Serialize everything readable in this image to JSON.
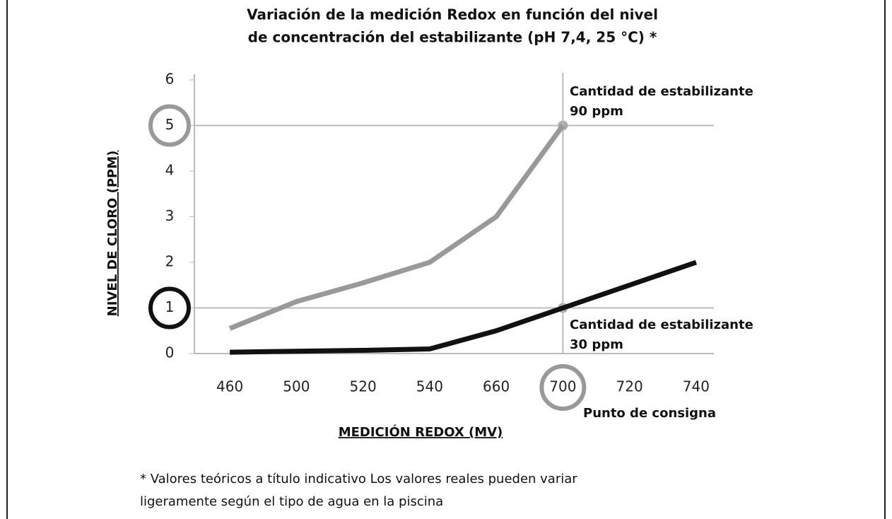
{
  "chart_data": {
    "type": "line",
    "title": [
      "Variación de la medición Redox en función del nivel",
      "de concentración del estabilizante (pH 7,4, 25 °C) *"
    ],
    "x_label": "MEDICIÓN REDOX (MV)",
    "y_label": "NIVEL DE CLORO (PPM)",
    "categories": [
      "460",
      "500",
      "520",
      "540",
      "660",
      "700",
      "720",
      "740"
    ],
    "series": [
      {
        "name": "Cantidad de estabilizante 90 ppm",
        "color": "#999999",
        "values": [
          0.55,
          1.14,
          1.55,
          2,
          3,
          5,
          null,
          null
        ]
      },
      {
        "name": "Cantidad de estabilizante 30 ppm",
        "color": "#111111",
        "values": [
          0.03,
          0.05,
          0.07,
          0.1,
          0.5,
          1,
          1.5,
          2
        ]
      }
    ],
    "ylim": [
      0,
      6
    ],
    "yticks": [
      0,
      1,
      2,
      3,
      4,
      5,
      6
    ],
    "highlight_y": [
      {
        "value": 5,
        "color": "#999999"
      },
      {
        "value": 1,
        "color": "#111111"
      }
    ],
    "highlight_x": {
      "category": "700",
      "color": "#999999",
      "label": "Punto de consigna"
    },
    "annotations": [
      {
        "lines": [
          "Cantidad de estabilizante",
          "90 ppm"
        ]
      },
      {
        "lines": [
          "Cantidad de estabilizante",
          "30 ppm"
        ]
      }
    ],
    "footnote": [
      "* Valores teóricos a título indicativo Los valores reales pueden variar",
      "ligeramente según el tipo de agua en la piscina"
    ]
  }
}
